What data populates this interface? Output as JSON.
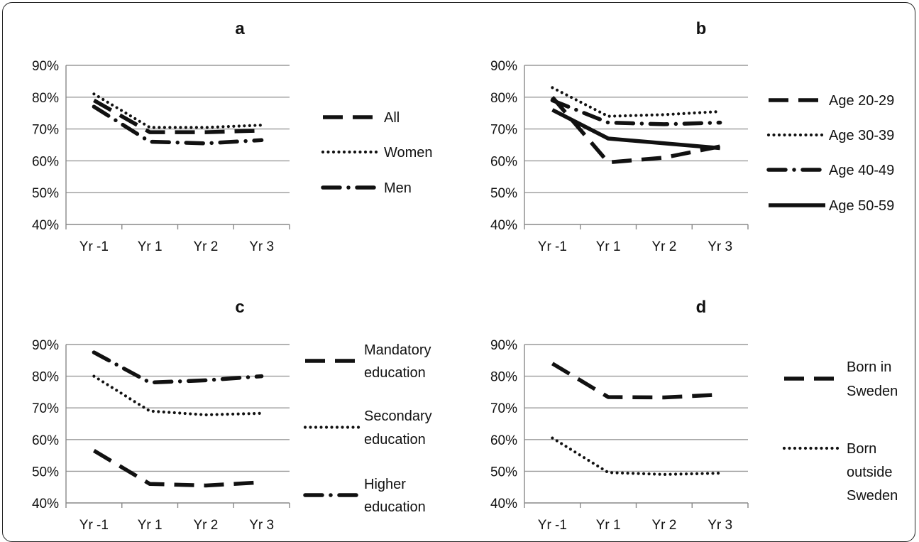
{
  "chart_data": [
    {
      "type": "line",
      "title": "a",
      "categories": [
        "Yr -1",
        "Yr 1",
        "Yr 2",
        "Yr 3"
      ],
      "ylim": [
        0.4,
        0.9
      ],
      "yticks": [
        "40%",
        "50%",
        "60%",
        "70%",
        "80%",
        "90%"
      ],
      "grid": true,
      "legend_position": "right",
      "series": [
        {
          "name": "All",
          "style": "dash",
          "values": [
            0.79,
            0.69,
            0.69,
            0.695
          ]
        },
        {
          "name": "Women",
          "style": "dot",
          "values": [
            0.81,
            0.705,
            0.705,
            0.712
          ]
        },
        {
          "name": "Men",
          "style": "dashdot",
          "values": [
            0.77,
            0.66,
            0.655,
            0.665
          ]
        }
      ]
    },
    {
      "type": "line",
      "title": "b",
      "categories": [
        "Yr -1",
        "Yr 1",
        "Yr 2",
        "Yr 3"
      ],
      "ylim": [
        0.4,
        0.9
      ],
      "yticks": [
        "40%",
        "50%",
        "60%",
        "70%",
        "80%",
        "90%"
      ],
      "grid": true,
      "legend_position": "right",
      "series": [
        {
          "name": "Age 20-29",
          "style": "dash",
          "values": [
            0.8,
            0.595,
            0.61,
            0.645
          ]
        },
        {
          "name": "Age 30-39",
          "style": "dot",
          "values": [
            0.83,
            0.74,
            0.745,
            0.755
          ]
        },
        {
          "name": "Age 40-49",
          "style": "dashdot",
          "values": [
            0.79,
            0.72,
            0.715,
            0.72
          ]
        },
        {
          "name": "Age 50-59",
          "style": "solid",
          "values": [
            0.76,
            0.67,
            0.655,
            0.64
          ]
        }
      ]
    },
    {
      "type": "line",
      "title": "c",
      "categories": [
        "Yr -1",
        "Yr 1",
        "Yr 2",
        "Yr 3"
      ],
      "ylim": [
        0.4,
        0.9
      ],
      "yticks": [
        "40%",
        "50%",
        "60%",
        "70%",
        "80%",
        "90%"
      ],
      "grid": true,
      "legend_position": "right",
      "series": [
        {
          "name": "Mandatory education",
          "label_lines": [
            "Mandatory",
            "education"
          ],
          "style": "dash",
          "values": [
            0.565,
            0.46,
            0.455,
            0.465
          ]
        },
        {
          "name": "Secondary education",
          "label_lines": [
            "Secondary",
            "education"
          ],
          "style": "dot",
          "values": [
            0.8,
            0.69,
            0.678,
            0.683
          ]
        },
        {
          "name": "Higher education",
          "label_lines": [
            "Higher",
            "education"
          ],
          "style": "dashdot",
          "values": [
            0.875,
            0.78,
            0.787,
            0.8
          ]
        }
      ]
    },
    {
      "type": "line",
      "title": "d",
      "categories": [
        "Yr -1",
        "Yr 1",
        "Yr 2",
        "Yr 3"
      ],
      "ylim": [
        0.4,
        0.9
      ],
      "yticks": [
        "40%",
        "50%",
        "60%",
        "70%",
        "80%",
        "90%"
      ],
      "grid": true,
      "legend_position": "right",
      "series": [
        {
          "name": "Born in Sweden",
          "label_lines": [
            "Born in",
            "Sweden"
          ],
          "style": "dash",
          "values": [
            0.84,
            0.734,
            0.733,
            0.742
          ]
        },
        {
          "name": "Born outside Sweden",
          "label_lines": [
            "Born",
            "outside",
            "Sweden"
          ],
          "style": "dot",
          "values": [
            0.605,
            0.496,
            0.49,
            0.494
          ]
        }
      ]
    }
  ]
}
